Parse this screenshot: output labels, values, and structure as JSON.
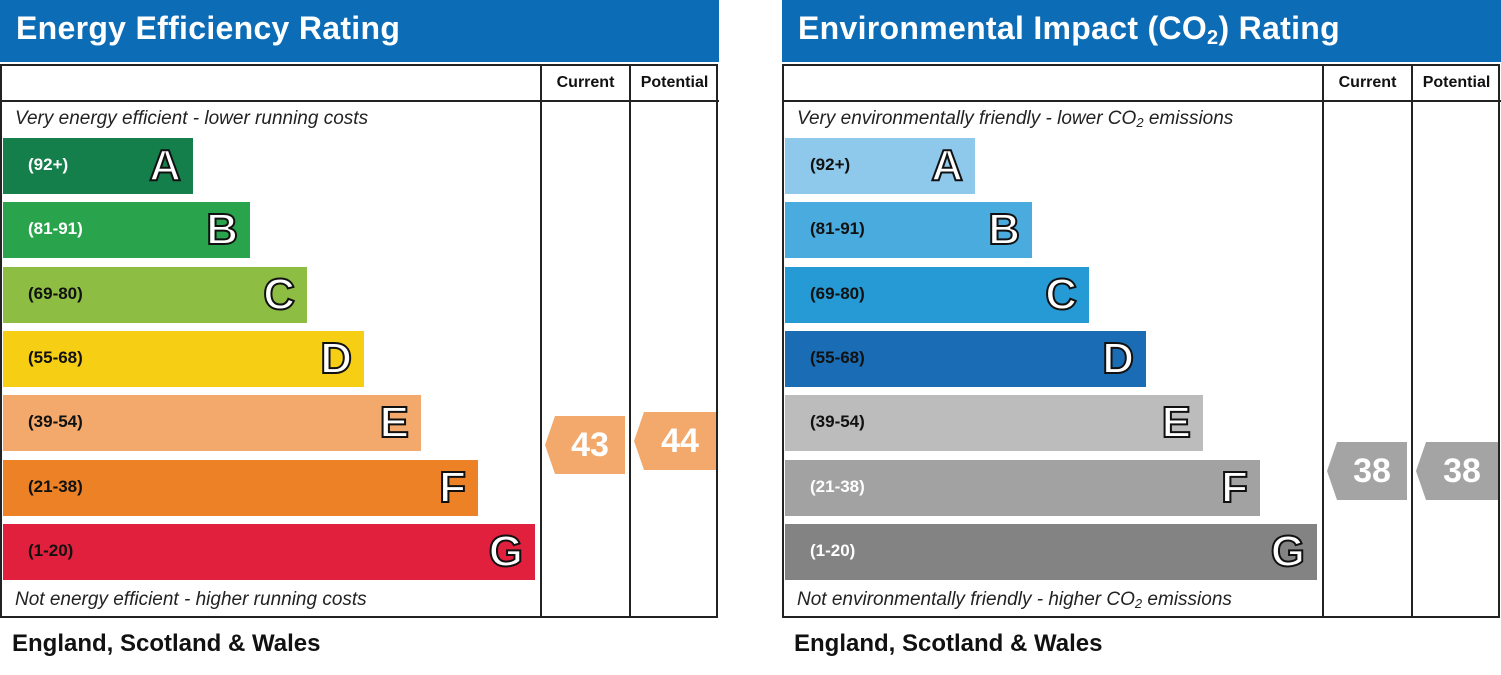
{
  "chart_data": [
    {
      "type": "bar",
      "title": "Energy Efficiency Rating",
      "columns": [
        "Current",
        "Potential"
      ],
      "top_caption": "Very energy efficient - lower running costs",
      "bottom_caption": "Not energy efficient - higher running costs",
      "footer": "England, Scotland & Wales",
      "bands": [
        {
          "range": "(92+)",
          "letter": "A",
          "color": "#157f4b",
          "text_color": "#ffffff"
        },
        {
          "range": "(81-91)",
          "letter": "B",
          "color": "#2aa44c",
          "text_color": "#ffffff"
        },
        {
          "range": "(69-80)",
          "letter": "C",
          "color": "#8dbd42",
          "text_color": "#111111"
        },
        {
          "range": "(55-68)",
          "letter": "D",
          "color": "#f6cf15",
          "text_color": "#111111"
        },
        {
          "range": "(39-54)",
          "letter": "E",
          "color": "#f2a96b",
          "text_color": "#111111"
        },
        {
          "range": "(21-38)",
          "letter": "F",
          "color": "#ec8126",
          "text_color": "#111111"
        },
        {
          "range": "(1-20)",
          "letter": "G",
          "color": "#e0203c",
          "text_color": "#111111"
        }
      ],
      "current": {
        "value": 43,
        "color": "#f2a96b"
      },
      "potential": {
        "value": 44,
        "color": "#f2a96b"
      }
    },
    {
      "type": "bar",
      "title_parts": {
        "before": "Environmental Impact (CO",
        "sub": "2",
        "after": ") Rating"
      },
      "columns": [
        "Current",
        "Potential"
      ],
      "top_caption_parts": {
        "before": "Very environmentally friendly - lower CO",
        "sub": "2",
        "after": " emissions"
      },
      "bottom_caption_parts": {
        "before": "Not environmentally friendly - higher CO",
        "sub": "2",
        "after": " emissions"
      },
      "footer": "England, Scotland & Wales",
      "bands": [
        {
          "range": "(92+)",
          "letter": "A",
          "color": "#8ec9ec",
          "text_color": "#111111"
        },
        {
          "range": "(81-91)",
          "letter": "B",
          "color": "#4aabdf",
          "text_color": "#111111"
        },
        {
          "range": "(69-80)",
          "letter": "C",
          "color": "#259ad4",
          "text_color": "#111111"
        },
        {
          "range": "(55-68)",
          "letter": "D",
          "color": "#1a6db5",
          "text_color": "#111111"
        },
        {
          "range": "(39-54)",
          "letter": "E",
          "color": "#bcbcbc",
          "text_color": "#111111"
        },
        {
          "range": "(21-38)",
          "letter": "F",
          "color": "#a2a2a2",
          "text_color": "#ffffff"
        },
        {
          "range": "(1-20)",
          "letter": "G",
          "color": "#838383",
          "text_color": "#ffffff"
        }
      ],
      "current": {
        "value": 38,
        "color": "#a4a4a4"
      },
      "potential": {
        "value": 38,
        "color": "#a4a4a4"
      }
    }
  ]
}
